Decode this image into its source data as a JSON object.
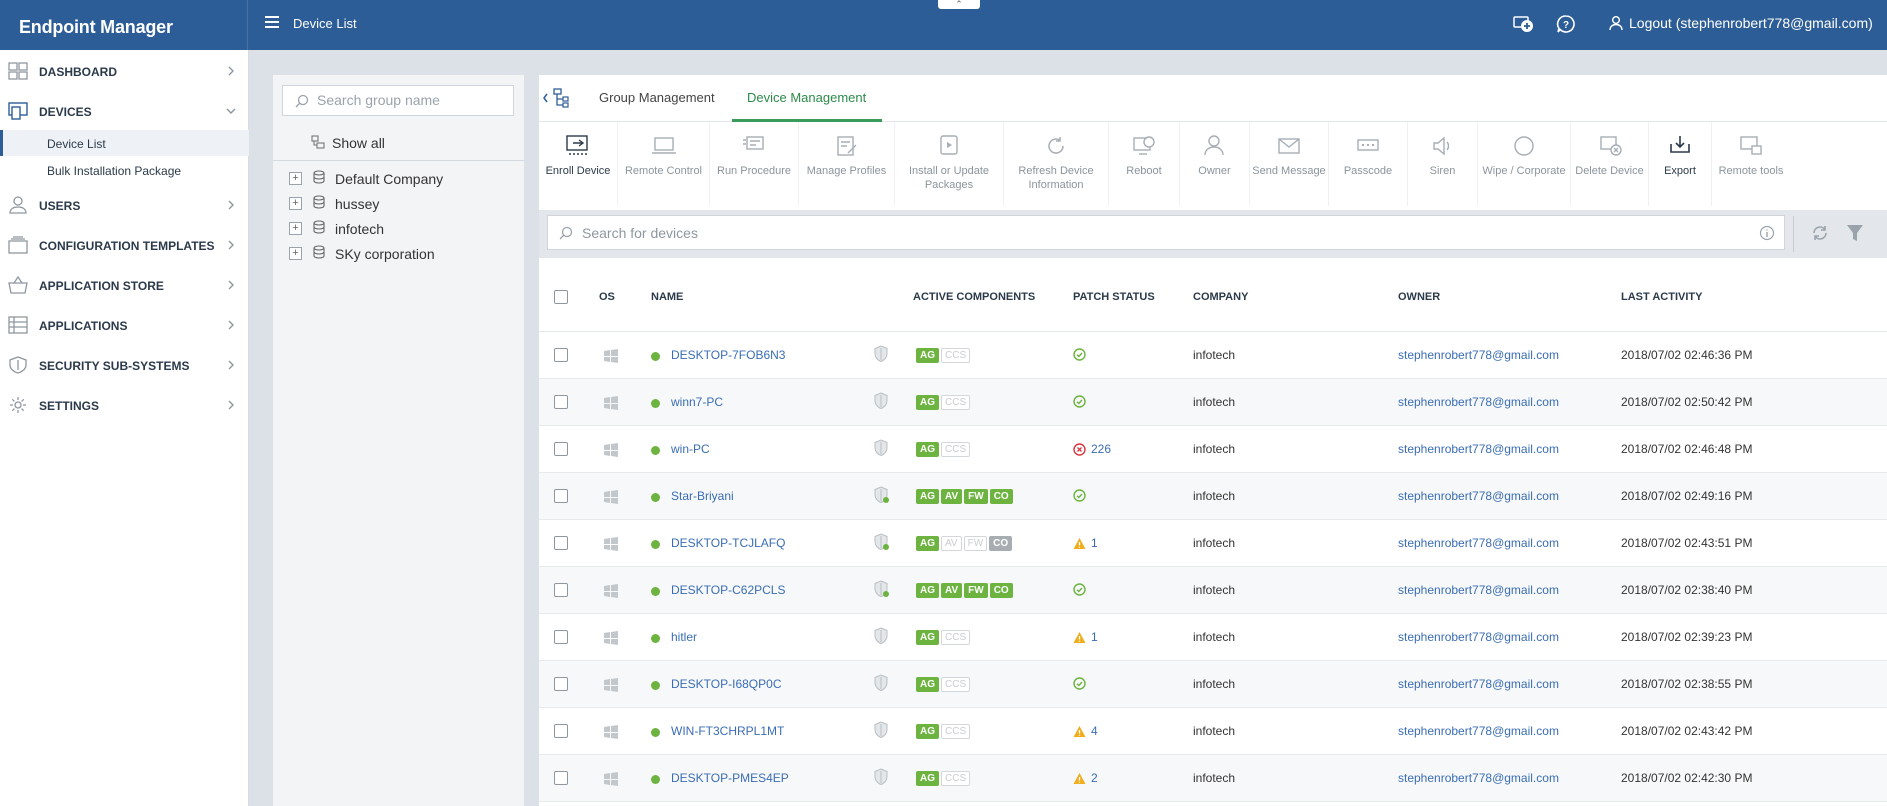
{
  "app": {
    "title": "Endpoint Manager",
    "page_title": "Device List",
    "logout_label": "Logout (stephenrobert778@gmail.com)"
  },
  "colors": {
    "header_bg": "#2d5d96",
    "active_tab": "#2d8a4a",
    "online": "#6cb33f",
    "link": "#3a6db3"
  },
  "sidebar": {
    "items": [
      {
        "label": "DASHBOARD",
        "icon": "dashboard-icon"
      },
      {
        "label": "DEVICES",
        "icon": "devices-icon",
        "expanded": true
      },
      {
        "label": "USERS",
        "icon": "user-icon"
      },
      {
        "label": "CONFIGURATION TEMPLATES",
        "icon": "templates-icon"
      },
      {
        "label": "APPLICATION STORE",
        "icon": "basket-icon"
      },
      {
        "label": "APPLICATIONS",
        "icon": "applications-icon"
      },
      {
        "label": "SECURITY SUB-SYSTEMS",
        "icon": "shield-icon"
      },
      {
        "label": "SETTINGS",
        "icon": "gear-icon"
      }
    ],
    "sub_items": [
      {
        "label": "Device List",
        "active": true
      },
      {
        "label": "Bulk Installation Package"
      }
    ]
  },
  "groups": {
    "search_placeholder": "Search group name",
    "show_all": "Show all",
    "list": [
      "Default Company",
      "hussey",
      "infotech",
      "SKy corporation"
    ]
  },
  "tabs": [
    "Group Management",
    "Device Management"
  ],
  "toolbar": [
    "Enroll Device",
    "Remote Control",
    "Run Procedure",
    "Manage Profiles",
    "Install or Update Packages",
    "Refresh Device Information",
    "Reboot",
    "Owner",
    "Send Message",
    "Passcode",
    "Siren",
    "Wipe / Corporate",
    "Delete Device",
    "Export",
    "Remote tools"
  ],
  "device_search": {
    "placeholder": "Search for devices"
  },
  "table": {
    "columns": [
      "OS",
      "NAME",
      "ACTIVE COMPONENTS",
      "PATCH STATUS",
      "COMPANY",
      "OWNER",
      "LAST ACTIVITY"
    ],
    "rows": [
      {
        "name": "DESKTOP-7FOB6N3",
        "components": [
          "AG",
          "CCS"
        ],
        "patch_status": "ok",
        "patch_count": "",
        "company": "infotech",
        "owner": "stephenrobert778@gmail.com",
        "last_activity": "2018/07/02 02:46:36 PM"
      },
      {
        "name": "winn7-PC",
        "components": [
          "AG",
          "CCS"
        ],
        "patch_status": "ok",
        "patch_count": "",
        "company": "infotech",
        "owner": "stephenrobert778@gmail.com",
        "last_activity": "2018/07/02 02:50:42 PM"
      },
      {
        "name": "win-PC",
        "components": [
          "AG",
          "CCS"
        ],
        "patch_status": "error",
        "patch_count": "226",
        "company": "infotech",
        "owner": "stephenrobert778@gmail.com",
        "last_activity": "2018/07/02 02:46:48 PM"
      },
      {
        "name": "Star-Briyani",
        "components": [
          "AG",
          "AV",
          "FW",
          "CO"
        ],
        "patch_status": "ok",
        "patch_count": "",
        "company": "infotech",
        "owner": "stephenrobert778@gmail.com",
        "last_activity": "2018/07/02 02:49:16 PM"
      },
      {
        "name": "DESKTOP-TCJLAFQ",
        "components": [
          "AG",
          "AV",
          "FW",
          "CO"
        ],
        "patch_status": "warning",
        "patch_count": "1",
        "company": "infotech",
        "owner": "stephenrobert778@gmail.com",
        "last_activity": "2018/07/02 02:43:51 PM"
      },
      {
        "name": "DESKTOP-C62PCLS",
        "components": [
          "AG",
          "AV",
          "FW",
          "CO"
        ],
        "patch_status": "ok",
        "patch_count": "",
        "company": "infotech",
        "owner": "stephenrobert778@gmail.com",
        "last_activity": "2018/07/02 02:38:40 PM"
      },
      {
        "name": "hitler",
        "components": [
          "AG",
          "CCS"
        ],
        "patch_status": "warning",
        "patch_count": "1",
        "company": "infotech",
        "owner": "stephenrobert778@gmail.com",
        "last_activity": "2018/07/02 02:39:23 PM"
      },
      {
        "name": "DESKTOP-I68QP0C",
        "components": [
          "AG",
          "CCS"
        ],
        "patch_status": "ok",
        "patch_count": "",
        "company": "infotech",
        "owner": "stephenrobert778@gmail.com",
        "last_activity": "2018/07/02 02:38:55 PM"
      },
      {
        "name": "WIN-FT3CHRPL1MT",
        "components": [
          "AG",
          "CCS"
        ],
        "patch_status": "warning",
        "patch_count": "4",
        "company": "infotech",
        "owner": "stephenrobert778@gmail.com",
        "last_activity": "2018/07/02 02:43:42 PM"
      },
      {
        "name": "DESKTOP-PMES4EP",
        "components": [
          "AG",
          "CCS"
        ],
        "patch_status": "warning",
        "patch_count": "2",
        "company": "infotech",
        "owner": "stephenrobert778@gmail.com",
        "last_activity": "2018/07/02 02:42:30 PM"
      }
    ]
  }
}
